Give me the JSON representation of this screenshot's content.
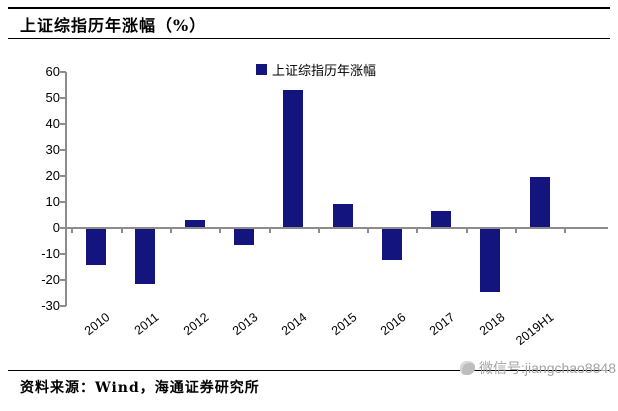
{
  "title": "上证综指历年涨幅（%）",
  "legend": {
    "label": "上证综指历年涨幅"
  },
  "footer": {
    "source": "资料来源：Wind，海通证券研究所",
    "watermark": "微信号:jiangchao8848"
  },
  "colors": {
    "bar": "#14147E",
    "axis": "#8c8c8c",
    "watermark_text": "#a3a3a3"
  },
  "chart_data": {
    "type": "bar",
    "title": "上证综指历年涨幅（%）",
    "legend_entries": [
      "上证综指历年涨幅"
    ],
    "legend_position": "top-center",
    "categories": [
      "2010",
      "2011",
      "2012",
      "2013",
      "2014",
      "2015",
      "2016",
      "2017",
      "2018",
      "2019H1"
    ],
    "values": [
      -14.3,
      -21.7,
      3.2,
      -6.7,
      52.9,
      9.4,
      -12.3,
      6.6,
      -24.6,
      19.5
    ],
    "xlabel": "",
    "ylabel": "",
    "ylim": [
      -30,
      60
    ],
    "yticks": [
      60,
      50,
      40,
      30,
      20,
      10,
      0,
      -10,
      -20,
      -30
    ],
    "grid": false
  }
}
